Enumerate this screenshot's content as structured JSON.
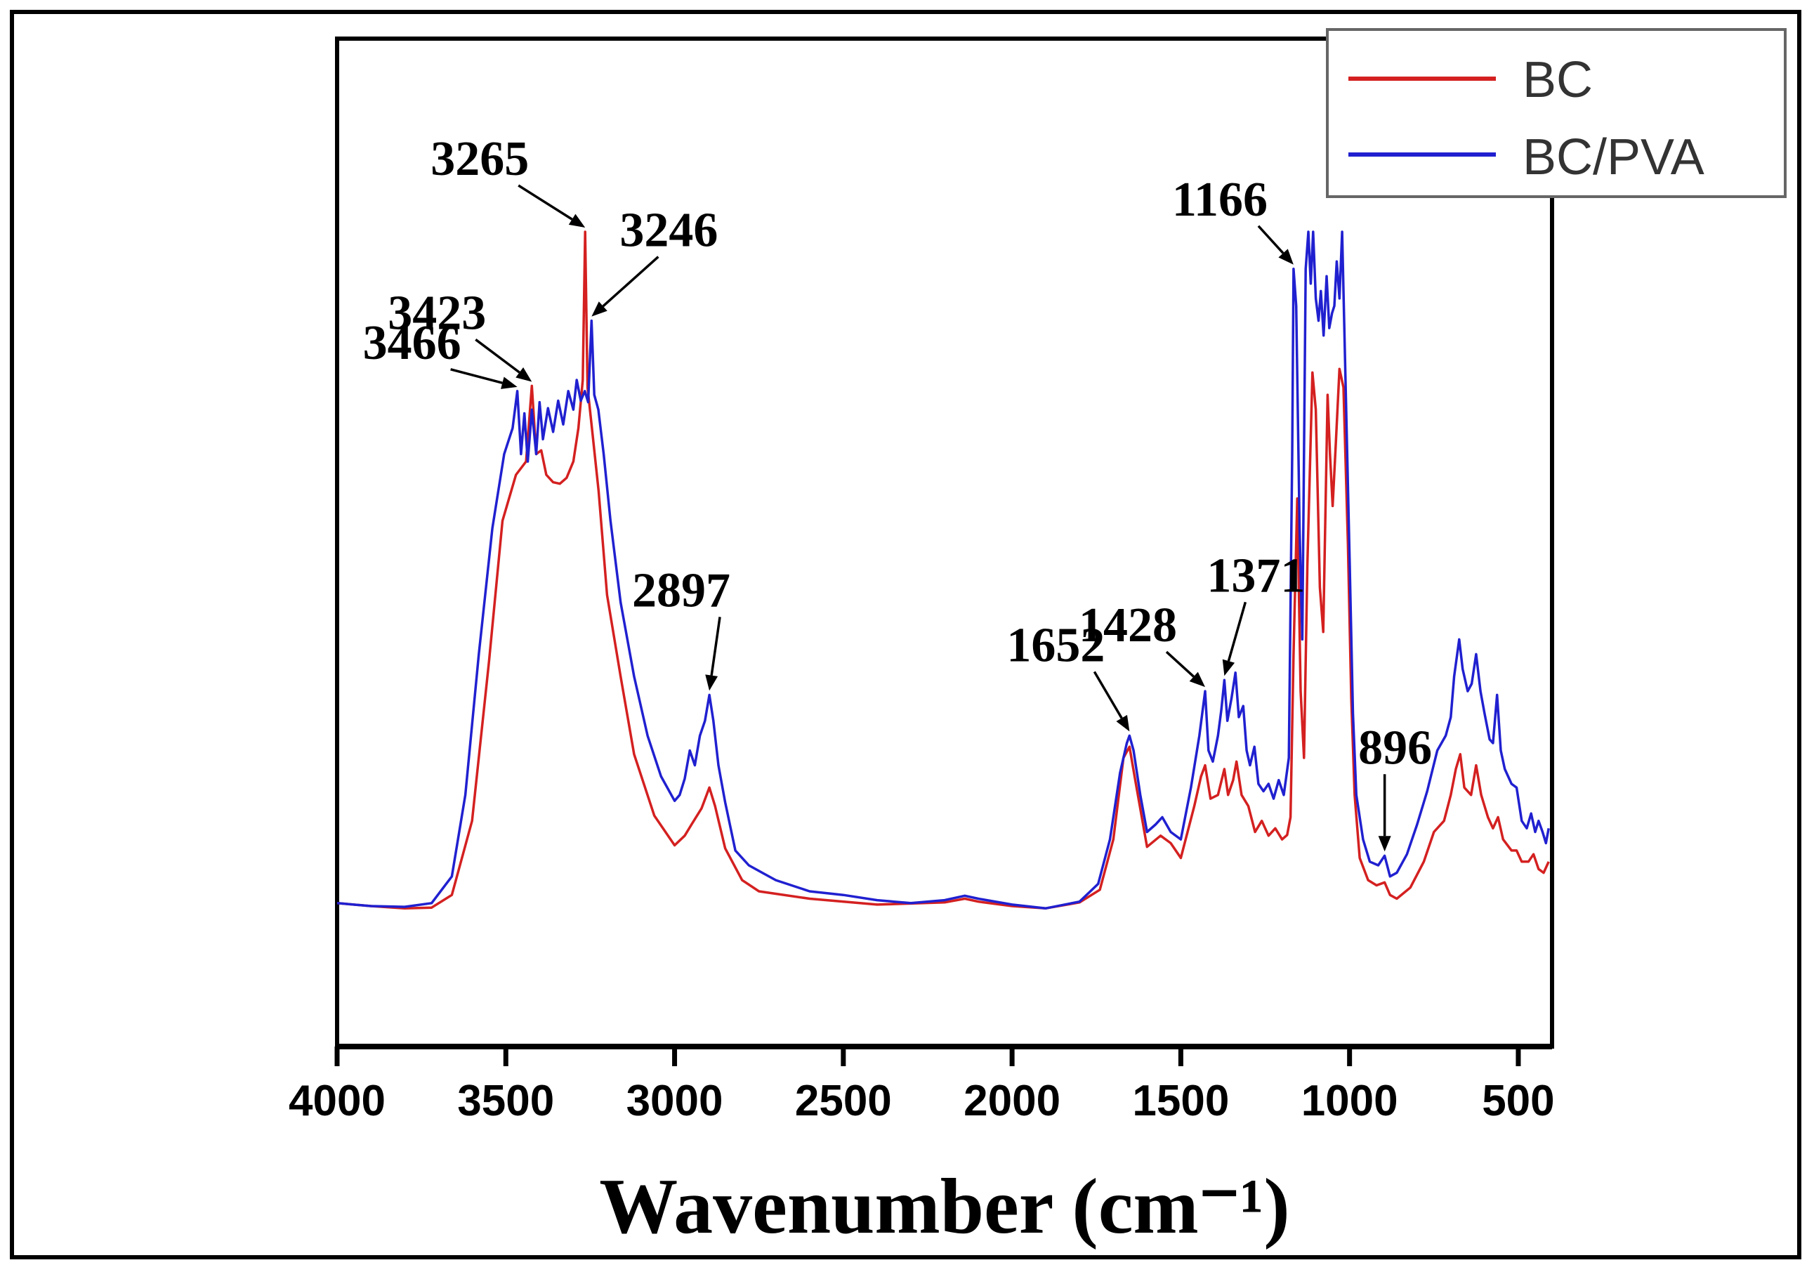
{
  "chart_data": {
    "type": "line",
    "title": "",
    "xlabel": "Wavenumber (cm⁻¹)",
    "ylabel": "",
    "xlim": [
      4000,
      400
    ],
    "ylim": [
      0,
      1
    ],
    "x_reversed": true,
    "x_ticks": [
      4000,
      3500,
      3000,
      2500,
      2000,
      1500,
      1000,
      500
    ],
    "x_tick_labels": [
      "4000",
      "3500",
      "3000",
      "2500",
      "2000",
      "1500",
      "1000",
      "500"
    ],
    "grid": false,
    "legend_position": "top-right",
    "series": [
      {
        "name": "BC",
        "color": "#d42020",
        "points": [
          [
            4000,
            0.094
          ],
          [
            3900,
            0.09
          ],
          [
            3800,
            0.087
          ],
          [
            3720,
            0.088
          ],
          [
            3660,
            0.105
          ],
          [
            3600,
            0.205
          ],
          [
            3550,
            0.42
          ],
          [
            3510,
            0.61
          ],
          [
            3470,
            0.672
          ],
          [
            3440,
            0.69
          ],
          [
            3423,
            0.792
          ],
          [
            3410,
            0.7
          ],
          [
            3395,
            0.705
          ],
          [
            3380,
            0.672
          ],
          [
            3360,
            0.662
          ],
          [
            3340,
            0.66
          ],
          [
            3320,
            0.668
          ],
          [
            3300,
            0.69
          ],
          [
            3285,
            0.735
          ],
          [
            3272,
            0.8
          ],
          [
            3265,
            1.0
          ],
          [
            3258,
            0.79
          ],
          [
            3246,
            0.74
          ],
          [
            3225,
            0.65
          ],
          [
            3200,
            0.51
          ],
          [
            3160,
            0.4
          ],
          [
            3120,
            0.295
          ],
          [
            3060,
            0.212
          ],
          [
            3000,
            0.172
          ],
          [
            2970,
            0.185
          ],
          [
            2950,
            0.2
          ],
          [
            2920,
            0.222
          ],
          [
            2897,
            0.25
          ],
          [
            2880,
            0.225
          ],
          [
            2850,
            0.168
          ],
          [
            2800,
            0.125
          ],
          [
            2750,
            0.11
          ],
          [
            2600,
            0.1
          ],
          [
            2400,
            0.092
          ],
          [
            2200,
            0.095
          ],
          [
            2140,
            0.1
          ],
          [
            2100,
            0.096
          ],
          [
            2000,
            0.09
          ],
          [
            1900,
            0.087
          ],
          [
            1800,
            0.095
          ],
          [
            1740,
            0.112
          ],
          [
            1700,
            0.18
          ],
          [
            1670,
            0.29
          ],
          [
            1652,
            0.305
          ],
          [
            1635,
            0.26
          ],
          [
            1600,
            0.17
          ],
          [
            1560,
            0.185
          ],
          [
            1530,
            0.175
          ],
          [
            1500,
            0.155
          ],
          [
            1460,
            0.225
          ],
          [
            1440,
            0.265
          ],
          [
            1428,
            0.28
          ],
          [
            1412,
            0.235
          ],
          [
            1390,
            0.24
          ],
          [
            1371,
            0.275
          ],
          [
            1360,
            0.24
          ],
          [
            1345,
            0.26
          ],
          [
            1335,
            0.285
          ],
          [
            1320,
            0.24
          ],
          [
            1300,
            0.225
          ],
          [
            1280,
            0.19
          ],
          [
            1260,
            0.205
          ],
          [
            1240,
            0.185
          ],
          [
            1220,
            0.195
          ],
          [
            1200,
            0.18
          ],
          [
            1185,
            0.186
          ],
          [
            1175,
            0.21
          ],
          [
            1166,
            0.43
          ],
          [
            1155,
            0.64
          ],
          [
            1145,
            0.38
          ],
          [
            1135,
            0.29
          ],
          [
            1125,
            0.55
          ],
          [
            1110,
            0.81
          ],
          [
            1100,
            0.76
          ],
          [
            1088,
            0.52
          ],
          [
            1078,
            0.46
          ],
          [
            1065,
            0.78
          ],
          [
            1058,
            0.7
          ],
          [
            1050,
            0.63
          ],
          [
            1040,
            0.72
          ],
          [
            1030,
            0.815
          ],
          [
            1018,
            0.79
          ],
          [
            1005,
            0.58
          ],
          [
            995,
            0.37
          ],
          [
            985,
            0.24
          ],
          [
            970,
            0.155
          ],
          [
            945,
            0.125
          ],
          [
            920,
            0.118
          ],
          [
            896,
            0.122
          ],
          [
            880,
            0.105
          ],
          [
            860,
            0.1
          ],
          [
            820,
            0.115
          ],
          [
            780,
            0.15
          ],
          [
            750,
            0.19
          ],
          [
            720,
            0.205
          ],
          [
            700,
            0.24
          ],
          [
            685,
            0.275
          ],
          [
            672,
            0.295
          ],
          [
            660,
            0.25
          ],
          [
            640,
            0.24
          ],
          [
            625,
            0.28
          ],
          [
            610,
            0.24
          ],
          [
            590,
            0.21
          ],
          [
            575,
            0.195
          ],
          [
            560,
            0.21
          ],
          [
            545,
            0.18
          ],
          [
            520,
            0.165
          ],
          [
            505,
            0.165
          ],
          [
            490,
            0.15
          ],
          [
            470,
            0.15
          ],
          [
            455,
            0.16
          ],
          [
            440,
            0.14
          ],
          [
            425,
            0.135
          ],
          [
            410,
            0.15
          ]
        ]
      },
      {
        "name": "BC/PVA",
        "color": "#2020d0",
        "points": [
          [
            4000,
            0.094
          ],
          [
            3900,
            0.09
          ],
          [
            3800,
            0.089
          ],
          [
            3720,
            0.094
          ],
          [
            3660,
            0.13
          ],
          [
            3620,
            0.24
          ],
          [
            3580,
            0.43
          ],
          [
            3540,
            0.6
          ],
          [
            3505,
            0.7
          ],
          [
            3480,
            0.735
          ],
          [
            3466,
            0.785
          ],
          [
            3455,
            0.7
          ],
          [
            3445,
            0.755
          ],
          [
            3435,
            0.69
          ],
          [
            3423,
            0.76
          ],
          [
            3410,
            0.7
          ],
          [
            3400,
            0.77
          ],
          [
            3390,
            0.72
          ],
          [
            3375,
            0.762
          ],
          [
            3360,
            0.73
          ],
          [
            3345,
            0.772
          ],
          [
            3330,
            0.74
          ],
          [
            3315,
            0.785
          ],
          [
            3300,
            0.76
          ],
          [
            3290,
            0.8
          ],
          [
            3278,
            0.772
          ],
          [
            3266,
            0.785
          ],
          [
            3256,
            0.77
          ],
          [
            3246,
            0.88
          ],
          [
            3238,
            0.78
          ],
          [
            3226,
            0.76
          ],
          [
            3210,
            0.7
          ],
          [
            3190,
            0.61
          ],
          [
            3160,
            0.5
          ],
          [
            3120,
            0.4
          ],
          [
            3080,
            0.32
          ],
          [
            3040,
            0.265
          ],
          [
            3000,
            0.232
          ],
          [
            2985,
            0.24
          ],
          [
            2970,
            0.262
          ],
          [
            2955,
            0.3
          ],
          [
            2940,
            0.28
          ],
          [
            2925,
            0.32
          ],
          [
            2910,
            0.34
          ],
          [
            2897,
            0.375
          ],
          [
            2885,
            0.34
          ],
          [
            2870,
            0.28
          ],
          [
            2850,
            0.23
          ],
          [
            2820,
            0.165
          ],
          [
            2780,
            0.145
          ],
          [
            2740,
            0.135
          ],
          [
            2700,
            0.125
          ],
          [
            2600,
            0.11
          ],
          [
            2500,
            0.105
          ],
          [
            2400,
            0.098
          ],
          [
            2300,
            0.094
          ],
          [
            2200,
            0.098
          ],
          [
            2140,
            0.104
          ],
          [
            2100,
            0.1
          ],
          [
            2000,
            0.092
          ],
          [
            1900,
            0.087
          ],
          [
            1800,
            0.096
          ],
          [
            1745,
            0.12
          ],
          [
            1710,
            0.18
          ],
          [
            1680,
            0.27
          ],
          [
            1660,
            0.31
          ],
          [
            1652,
            0.32
          ],
          [
            1640,
            0.3
          ],
          [
            1620,
            0.24
          ],
          [
            1600,
            0.19
          ],
          [
            1575,
            0.2
          ],
          [
            1555,
            0.21
          ],
          [
            1530,
            0.19
          ],
          [
            1500,
            0.18
          ],
          [
            1470,
            0.25
          ],
          [
            1445,
            0.32
          ],
          [
            1428,
            0.38
          ],
          [
            1418,
            0.3
          ],
          [
            1405,
            0.285
          ],
          [
            1390,
            0.32
          ],
          [
            1380,
            0.355
          ],
          [
            1371,
            0.395
          ],
          [
            1362,
            0.34
          ],
          [
            1350,
            0.37
          ],
          [
            1338,
            0.405
          ],
          [
            1328,
            0.345
          ],
          [
            1315,
            0.36
          ],
          [
            1305,
            0.3
          ],
          [
            1295,
            0.28
          ],
          [
            1282,
            0.305
          ],
          [
            1270,
            0.255
          ],
          [
            1255,
            0.245
          ],
          [
            1240,
            0.255
          ],
          [
            1225,
            0.235
          ],
          [
            1210,
            0.26
          ],
          [
            1195,
            0.24
          ],
          [
            1180,
            0.29
          ],
          [
            1170,
            0.7
          ],
          [
            1166,
            0.95
          ],
          [
            1158,
            0.9
          ],
          [
            1148,
            0.6
          ],
          [
            1140,
            0.45
          ],
          [
            1130,
            0.95
          ],
          [
            1122,
            1.0
          ],
          [
            1115,
            0.93
          ],
          [
            1108,
            1.0
          ],
          [
            1100,
            0.91
          ],
          [
            1092,
            0.88
          ],
          [
            1085,
            0.92
          ],
          [
            1077,
            0.86
          ],
          [
            1068,
            0.94
          ],
          [
            1060,
            0.87
          ],
          [
            1052,
            0.89
          ],
          [
            1045,
            0.9
          ],
          [
            1038,
            0.96
          ],
          [
            1030,
            0.91
          ],
          [
            1022,
            1.0
          ],
          [
            1012,
            0.8
          ],
          [
            1000,
            0.56
          ],
          [
            990,
            0.35
          ],
          [
            980,
            0.24
          ],
          [
            960,
            0.18
          ],
          [
            940,
            0.15
          ],
          [
            915,
            0.145
          ],
          [
            896,
            0.158
          ],
          [
            880,
            0.13
          ],
          [
            860,
            0.135
          ],
          [
            830,
            0.16
          ],
          [
            800,
            0.2
          ],
          [
            770,
            0.245
          ],
          [
            740,
            0.3
          ],
          [
            715,
            0.32
          ],
          [
            700,
            0.345
          ],
          [
            690,
            0.4
          ],
          [
            675,
            0.45
          ],
          [
            665,
            0.41
          ],
          [
            650,
            0.38
          ],
          [
            638,
            0.39
          ],
          [
            625,
            0.43
          ],
          [
            612,
            0.38
          ],
          [
            600,
            0.35
          ],
          [
            585,
            0.315
          ],
          [
            575,
            0.31
          ],
          [
            563,
            0.375
          ],
          [
            552,
            0.3
          ],
          [
            540,
            0.275
          ],
          [
            520,
            0.255
          ],
          [
            505,
            0.25
          ],
          [
            490,
            0.205
          ],
          [
            475,
            0.195
          ],
          [
            462,
            0.215
          ],
          [
            450,
            0.19
          ],
          [
            440,
            0.205
          ],
          [
            428,
            0.19
          ],
          [
            418,
            0.175
          ],
          [
            410,
            0.195
          ]
        ]
      }
    ],
    "annotations": [
      {
        "text": "3265",
        "x": 3265,
        "series": "BC"
      },
      {
        "text": "3246",
        "x": 3246,
        "series": "BC/PVA"
      },
      {
        "text": "3423",
        "x": 3423,
        "series": "BC"
      },
      {
        "text": "3466",
        "x": 3466,
        "series": "BC/PVA"
      },
      {
        "text": "2897",
        "x": 2897,
        "series": "BC/PVA"
      },
      {
        "text": "1652",
        "x": 1652,
        "series": "BC/PVA"
      },
      {
        "text": "1428",
        "x": 1428,
        "series": "BC/PVA"
      },
      {
        "text": "1371",
        "x": 1371,
        "series": "BC/PVA"
      },
      {
        "text": "1166",
        "x": 1166,
        "series": "BC/PVA"
      },
      {
        "text": "896",
        "x": 896,
        "series": "BC/PVA"
      }
    ]
  }
}
